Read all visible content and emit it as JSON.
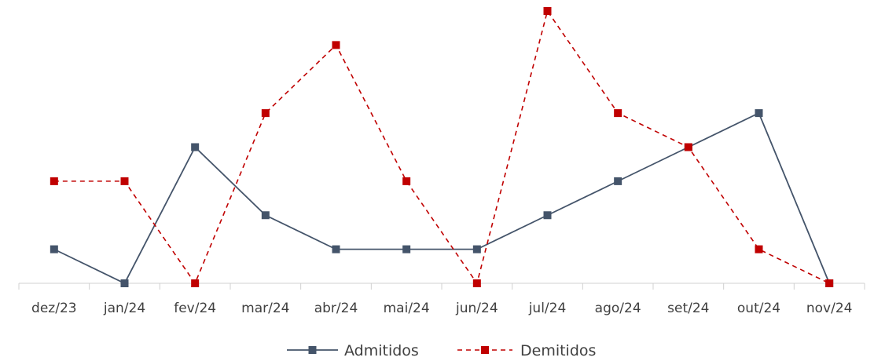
{
  "chart_data": {
    "type": "line",
    "categories": [
      "dez/23",
      "jan/24",
      "fev/24",
      "mar/24",
      "abr/24",
      "mai/24",
      "jun/24",
      "jul/24",
      "ago/24",
      "set/24",
      "out/24",
      "nov/24"
    ],
    "series": [
      {
        "name": "Admitidos",
        "color": "#44546A",
        "line_style": "solid",
        "marker": "square",
        "values": [
          1,
          0,
          4,
          2,
          1,
          1,
          1,
          2,
          3,
          4,
          5,
          0
        ]
      },
      {
        "name": "Demitidos",
        "color": "#C00000",
        "line_style": "dashed",
        "marker": "square",
        "values": [
          3,
          3,
          0,
          5,
          7,
          3,
          0,
          8,
          5,
          4,
          1,
          0
        ]
      }
    ],
    "ylim": [
      0,
      8
    ],
    "grid": false,
    "y_axis_visible": false,
    "legend_position": "bottom"
  }
}
